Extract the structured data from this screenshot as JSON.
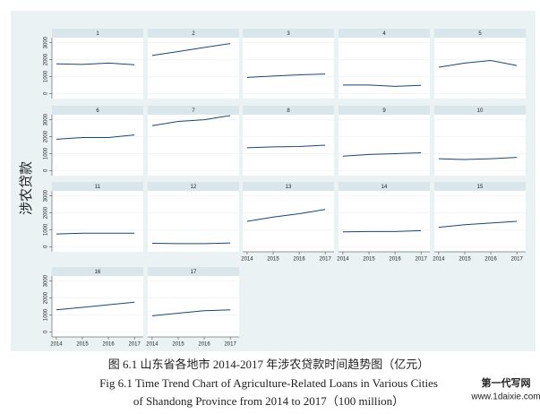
{
  "chart_data": {
    "type": "line",
    "y_label": "涉农贷款",
    "x": [
      2014,
      2015,
      2016,
      2017
    ],
    "xlim": [
      2013.83,
      2017.34
    ],
    "xticks": [
      2014,
      2015,
      2016,
      2017
    ],
    "ylim": [
      -300,
      3300
    ],
    "yticks": [
      0,
      1000,
      2000,
      3000
    ],
    "grid": true,
    "color": "#1a476f",
    "panels": [
      {
        "title": "1",
        "values": [
          1750,
          1720,
          1800,
          1700
        ]
      },
      {
        "title": "2",
        "values": [
          2250,
          2480,
          2720,
          2950
        ]
      },
      {
        "title": "3",
        "values": [
          950,
          1030,
          1100,
          1150
        ]
      },
      {
        "title": "4",
        "values": [
          500,
          500,
          420,
          480
        ]
      },
      {
        "title": "5",
        "values": [
          1550,
          1800,
          1950,
          1650
        ]
      },
      {
        "title": "6",
        "values": [
          1850,
          1950,
          1950,
          2100
        ]
      },
      {
        "title": "7",
        "values": [
          2650,
          2900,
          3000,
          3250
        ]
      },
      {
        "title": "8",
        "values": [
          1350,
          1400,
          1420,
          1500
        ]
      },
      {
        "title": "9",
        "values": [
          850,
          950,
          1000,
          1050
        ]
      },
      {
        "title": "10",
        "values": [
          700,
          650,
          700,
          780
        ]
      },
      {
        "title": "11",
        "values": [
          750,
          800,
          800,
          800
        ]
      },
      {
        "title": "12",
        "values": [
          200,
          180,
          180,
          220
        ]
      },
      {
        "title": "13",
        "values": [
          1500,
          1750,
          1950,
          2200
        ]
      },
      {
        "title": "14",
        "values": [
          880,
          900,
          900,
          950
        ]
      },
      {
        "title": "15",
        "values": [
          1150,
          1300,
          1400,
          1500
        ]
      },
      {
        "title": "16",
        "values": [
          1300,
          1450,
          1600,
          1750
        ]
      },
      {
        "title": "17",
        "values": [
          950,
          1100,
          1250,
          1300
        ]
      }
    ]
  },
  "caption": [
    "图 6.1  山东省各地市 2014-2017 年涉农贷款时间趋势图（亿元）",
    "Fig 6.1 Time Trend Chart of Agriculture-Related Loans in Various Cities",
    "of Shandong Province from 2014 to 2017（100 million）"
  ],
  "watermark": [
    "第一代写网",
    "www.1daixie.com"
  ]
}
